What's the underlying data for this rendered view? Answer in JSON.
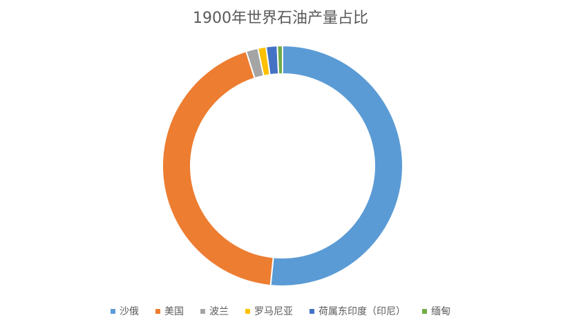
{
  "chart_data": {
    "type": "pie",
    "subtype": "doughnut",
    "title": "1900年世界石油产量占比",
    "categories": [
      "沙俄",
      "美国",
      "波兰",
      "罗马尼亚",
      "荷属东印度（印尼）",
      "缅甸"
    ],
    "values": [
      51.6,
      43.5,
      1.6,
      1.1,
      1.5,
      0.7
    ],
    "unit": "%",
    "colors": [
      "#5b9bd5",
      "#ed7d31",
      "#a5a5a5",
      "#ffc000",
      "#4472c4",
      "#70ad47"
    ],
    "legend_position": "bottom",
    "data_labels": false
  },
  "legend": [
    {
      "label": "沙俄",
      "color": "#5b9bd5"
    },
    {
      "label": "美国",
      "color": "#ed7d31"
    },
    {
      "label": "波兰",
      "color": "#a5a5a5"
    },
    {
      "label": "罗马尼亚",
      "color": "#ffc000"
    },
    {
      "label": "荷属东印度（印尼）",
      "color": "#4472c4"
    },
    {
      "label": "缅甸",
      "color": "#70ad47"
    }
  ]
}
